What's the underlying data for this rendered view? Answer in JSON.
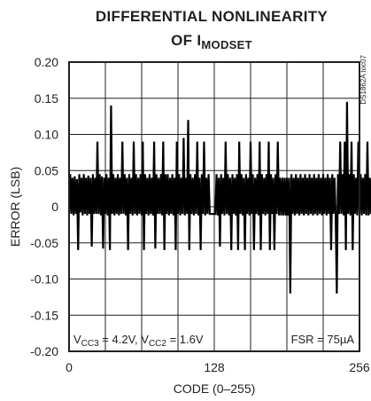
{
  "chart_data": {
    "type": "line",
    "title_line1": "DIFFERENTIAL NONLINEARITY",
    "title_line2_main": "OF I",
    "title_line2_sub": "MODSET",
    "xlabel": "CODE (0–255)",
    "ylabel": "ERROR (LSB)",
    "xlim": [
      0,
      256
    ],
    "ylim": [
      -0.2,
      0.2
    ],
    "x_ticks": [
      0,
      128,
      256
    ],
    "x_tick_labels": [
      "0",
      "128",
      "256"
    ],
    "y_ticks": [
      0.2,
      0.15,
      0.1,
      0.05,
      0,
      -0.05,
      -0.1,
      -0.15,
      -0.2
    ],
    "y_tick_labels": [
      "0.20",
      "0.15",
      "0.10",
      "0.05",
      "0",
      "-0.05",
      "-0.10",
      "-0.15",
      "-0.20"
    ],
    "grid": true,
    "doc_code": "DS1862A toc07",
    "annotation_left": {
      "v1": "V",
      "s1": "CC3",
      "t1": " = 4.2V, V",
      "s2": "CC2",
      "t2": " = 1.6V"
    },
    "annotation_right": "FSR = 75µA",
    "series": [
      {
        "color": "#000000",
        "values": [
          -0.008,
          0.045,
          -0.01,
          0.04,
          -0.012,
          0.042,
          -0.01,
          0.038,
          -0.06,
          0.045,
          -0.008,
          0.04,
          -0.012,
          0.045,
          -0.01,
          0.04,
          -0.012,
          0.043,
          -0.01,
          0.04,
          -0.055,
          0.045,
          -0.01,
          0.04,
          -0.01,
          0.09,
          -0.01,
          0.045,
          -0.012,
          0.042,
          -0.058,
          0.04,
          -0.01,
          0.045,
          -0.012,
          0.04,
          -0.06,
          0.14,
          -0.01,
          0.045,
          -0.012,
          0.04,
          -0.01,
          0.045,
          -0.012,
          0.04,
          -0.01,
          0.09,
          -0.01,
          0.045,
          -0.012,
          0.04,
          -0.06,
          0.045,
          -0.01,
          0.04,
          -0.012,
          0.09,
          -0.01,
          0.045,
          -0.012,
          0.04,
          -0.01,
          0.045,
          -0.012,
          0.09,
          -0.06,
          0.045,
          -0.01,
          0.04,
          -0.012,
          0.045,
          -0.01,
          0.04,
          -0.012,
          0.09,
          -0.058,
          0.045,
          -0.01,
          0.04,
          -0.01,
          0.045,
          -0.012,
          0.09,
          -0.06,
          0.045,
          -0.01,
          0.045,
          -0.012,
          0.04,
          -0.01,
          0.045,
          -0.012,
          0.04,
          -0.06,
          0.09,
          -0.01,
          0.045,
          -0.012,
          0.04,
          -0.01,
          0.095,
          -0.012,
          0.04,
          -0.01,
          0.12,
          -0.06,
          0.045,
          -0.01,
          0.04,
          -0.012,
          0.045,
          -0.01,
          0.09,
          -0.012,
          0.04,
          -0.06,
          0.045,
          -0.01,
          0.09,
          -0.012,
          0.04,
          -0.01,
          0.045,
          -0.01,
          -0.01,
          -0.01,
          -0.01,
          -0.01,
          -0.01,
          0.045,
          -0.012,
          0.04,
          -0.055,
          0.045,
          -0.01,
          0.04,
          -0.012,
          0.09,
          -0.01,
          0.045,
          -0.012,
          0.04,
          -0.06,
          0.045,
          -0.01,
          0.04,
          -0.012,
          0.045,
          -0.06,
          0.09,
          -0.01,
          0.045,
          -0.012,
          0.04,
          -0.06,
          0.045,
          -0.01,
          0.04,
          -0.012,
          0.09,
          -0.01,
          0.045,
          -0.06,
          0.04,
          -0.01,
          0.045,
          -0.012,
          0.09,
          -0.06,
          0.045,
          -0.01,
          0.04,
          -0.012,
          0.045,
          -0.01,
          0.09,
          -0.06,
          0.045,
          -0.01,
          0.04,
          -0.06,
          0.045,
          -0.01,
          0.09,
          -0.012,
          0.04,
          -0.012,
          0.04,
          -0.012,
          0.04,
          -0.012,
          0.04,
          -0.012,
          0.04,
          -0.12,
          0.045,
          -0.01,
          0.04,
          -0.012,
          0.045,
          -0.01,
          0.04,
          -0.012,
          0.045,
          -0.01,
          0.04,
          -0.012,
          0.045,
          -0.01,
          0.04,
          -0.012,
          0.045,
          -0.01,
          0.04,
          -0.012,
          0.045,
          -0.01,
          0.04,
          -0.012,
          0.045,
          -0.01,
          0.04,
          -0.012,
          0.045,
          -0.01,
          0.04,
          -0.012,
          0.045,
          -0.01,
          0.04,
          -0.06,
          0.045,
          -0.01,
          0.04,
          -0.012,
          -0.12,
          0.045,
          -0.01,
          0.09,
          -0.01,
          0.045,
          -0.012,
          0.09,
          -0.06,
          0.145,
          -0.01,
          0.045,
          -0.012,
          0.09,
          -0.06,
          0.045,
          -0.01,
          0.04,
          -0.012,
          0.09,
          -0.01,
          0.045,
          -0.012,
          0.04,
          -0.01,
          0.045,
          -0.012,
          0.09,
          -0.012,
          0.04,
          -0.01,
          0.045,
          -0.012,
          0.04,
          -0.01,
          0.045,
          -0.012,
          0.04,
          -0.06,
          0.045,
          -0.01,
          0.045
        ]
      }
    ]
  }
}
